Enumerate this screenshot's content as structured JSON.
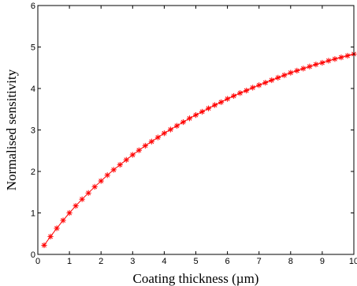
{
  "chart_data": {
    "type": "line",
    "xlabel": "Coating thickness (µm)",
    "ylabel": "Normalised sensitivity",
    "xlim": [
      0,
      10
    ],
    "ylim": [
      0,
      6
    ],
    "xticks": [
      "0",
      "1",
      "2",
      "3",
      "4",
      "5",
      "6",
      "7",
      "8",
      "9",
      "10"
    ],
    "yticks": [
      "0",
      "1",
      "2",
      "3",
      "4",
      "5",
      "6"
    ],
    "grid": false,
    "legend": "none",
    "series": [
      {
        "color": "#ff0000",
        "marker": "asterisk",
        "x": [
          0.2,
          0.4,
          0.6,
          0.8,
          1.0,
          1.2,
          1.4,
          1.6,
          1.8,
          2.0,
          2.2,
          2.4,
          2.6,
          2.8,
          3.0,
          3.2,
          3.4,
          3.6,
          3.8,
          4.0,
          4.2,
          4.4,
          4.6,
          4.8,
          5.0,
          5.2,
          5.4,
          5.6,
          5.8,
          6.0,
          6.2,
          6.4,
          6.6,
          6.8,
          7.0,
          7.2,
          7.4,
          7.6,
          7.8,
          8.0,
          8.2,
          8.4,
          8.6,
          8.8,
          9.0,
          9.2,
          9.4,
          9.6,
          9.8,
          10.0
        ],
        "y": [
          0.22,
          0.43,
          0.63,
          0.82,
          1.0,
          1.17,
          1.33,
          1.48,
          1.63,
          1.77,
          1.91,
          2.04,
          2.16,
          2.28,
          2.4,
          2.51,
          2.62,
          2.72,
          2.82,
          2.92,
          3.01,
          3.1,
          3.19,
          3.28,
          3.36,
          3.44,
          3.52,
          3.6,
          3.67,
          3.75,
          3.82,
          3.89,
          3.95,
          4.02,
          4.08,
          4.14,
          4.2,
          4.26,
          4.32,
          4.38,
          4.43,
          4.48,
          4.53,
          4.58,
          4.62,
          4.67,
          4.71,
          4.75,
          4.79,
          4.83
        ]
      }
    ]
  }
}
